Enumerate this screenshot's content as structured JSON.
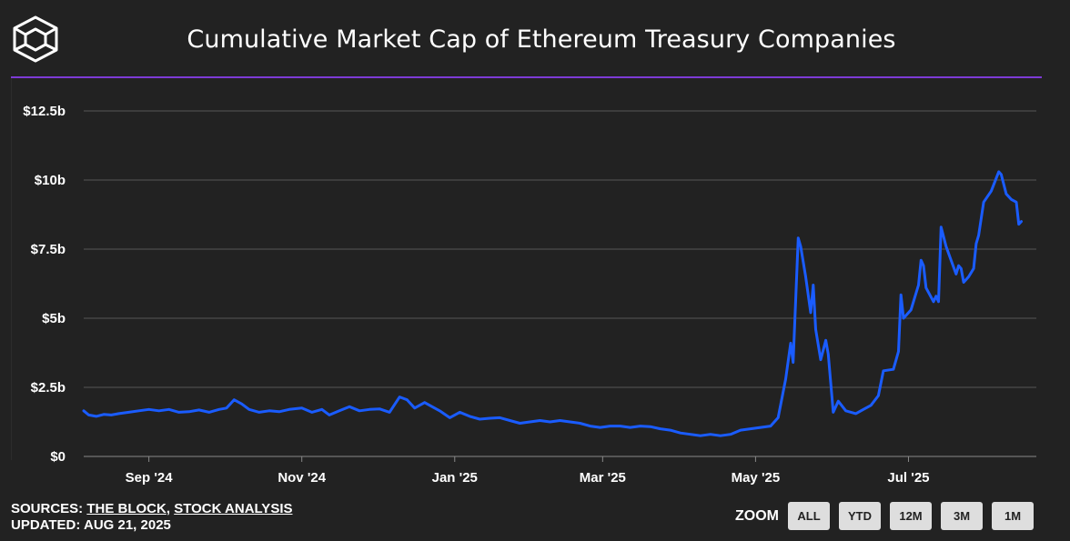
{
  "header": {
    "title": "Cumulative Market Cap of Ethereum Treasury Companies"
  },
  "footer": {
    "sources_prefix": "SOURCES: ",
    "source1": "THE BLOCK",
    "separator": ", ",
    "source2": "STOCK ANALYSIS",
    "updated": "UPDATED: AUG 21, 2025"
  },
  "zoom": {
    "label": "ZOOM",
    "buttons": [
      "ALL",
      "YTD",
      "12M",
      "3M",
      "1M"
    ]
  },
  "colors": {
    "background": "#222222",
    "accent": "#7d3bd6",
    "line": "#1a5cff",
    "grid": "#555555"
  },
  "icons": {
    "logo": "cube-logo-icon"
  },
  "chart_data": {
    "type": "line",
    "title": "Cumulative Market Cap of Ethereum Treasury Companies",
    "xlabel": "",
    "ylabel": "",
    "x_range": [
      "2024-08-06",
      "2025-08-21"
    ],
    "ylim": [
      0,
      12.5
    ],
    "y_unit": "billion USD",
    "y_ticks": [
      0,
      2.5,
      5,
      7.5,
      10,
      12.5
    ],
    "y_tick_labels": [
      "$0",
      "$2.5b",
      "$5b",
      "$7.5b",
      "$10b",
      "$12.5b"
    ],
    "x_ticks": [
      "2024-09-01",
      "2024-11-01",
      "2025-01-01",
      "2025-03-01",
      "2025-05-01",
      "2025-07-01"
    ],
    "x_tick_labels": [
      "Sep '24",
      "Nov '24",
      "Jan '25",
      "Mar '25",
      "May '25",
      "Jul '25"
    ],
    "grid": true,
    "legend": "none",
    "series": [
      {
        "color": "#1a5cff",
        "points": [
          [
            "2024-08-06",
            1.65
          ],
          [
            "2024-08-08",
            1.5
          ],
          [
            "2024-08-11",
            1.45
          ],
          [
            "2024-08-14",
            1.52
          ],
          [
            "2024-08-17",
            1.5
          ],
          [
            "2024-08-20",
            1.55
          ],
          [
            "2024-08-24",
            1.6
          ],
          [
            "2024-08-28",
            1.65
          ],
          [
            "2024-09-01",
            1.7
          ],
          [
            "2024-09-05",
            1.65
          ],
          [
            "2024-09-09",
            1.7
          ],
          [
            "2024-09-13",
            1.6
          ],
          [
            "2024-09-17",
            1.62
          ],
          [
            "2024-09-21",
            1.68
          ],
          [
            "2024-09-25",
            1.6
          ],
          [
            "2024-09-29",
            1.7
          ],
          [
            "2024-10-02",
            1.75
          ],
          [
            "2024-10-05",
            2.05
          ],
          [
            "2024-10-08",
            1.9
          ],
          [
            "2024-10-11",
            1.7
          ],
          [
            "2024-10-15",
            1.6
          ],
          [
            "2024-10-19",
            1.65
          ],
          [
            "2024-10-23",
            1.62
          ],
          [
            "2024-10-27",
            1.7
          ],
          [
            "2024-11-01",
            1.75
          ],
          [
            "2024-11-05",
            1.6
          ],
          [
            "2024-11-09",
            1.7
          ],
          [
            "2024-11-12",
            1.5
          ],
          [
            "2024-11-16",
            1.65
          ],
          [
            "2024-11-20",
            1.8
          ],
          [
            "2024-11-24",
            1.65
          ],
          [
            "2024-11-28",
            1.7
          ],
          [
            "2024-12-02",
            1.72
          ],
          [
            "2024-12-06",
            1.6
          ],
          [
            "2024-12-10",
            2.15
          ],
          [
            "2024-12-13",
            2.05
          ],
          [
            "2024-12-16",
            1.75
          ],
          [
            "2024-12-20",
            1.95
          ],
          [
            "2024-12-23",
            1.8
          ],
          [
            "2024-12-26",
            1.65
          ],
          [
            "2024-12-30",
            1.4
          ],
          [
            "2025-01-03",
            1.6
          ],
          [
            "2025-01-07",
            1.45
          ],
          [
            "2025-01-11",
            1.35
          ],
          [
            "2025-01-15",
            1.38
          ],
          [
            "2025-01-19",
            1.4
          ],
          [
            "2025-01-23",
            1.3
          ],
          [
            "2025-01-27",
            1.2
          ],
          [
            "2025-01-31",
            1.25
          ],
          [
            "2025-02-04",
            1.3
          ],
          [
            "2025-02-08",
            1.25
          ],
          [
            "2025-02-12",
            1.3
          ],
          [
            "2025-02-16",
            1.25
          ],
          [
            "2025-02-20",
            1.2
          ],
          [
            "2025-02-24",
            1.1
          ],
          [
            "2025-02-28",
            1.05
          ],
          [
            "2025-03-04",
            1.1
          ],
          [
            "2025-03-08",
            1.1
          ],
          [
            "2025-03-12",
            1.05
          ],
          [
            "2025-03-16",
            1.1
          ],
          [
            "2025-03-20",
            1.08
          ],
          [
            "2025-03-24",
            1.0
          ],
          [
            "2025-03-28",
            0.95
          ],
          [
            "2025-04-01",
            0.85
          ],
          [
            "2025-04-05",
            0.8
          ],
          [
            "2025-04-09",
            0.75
          ],
          [
            "2025-04-13",
            0.8
          ],
          [
            "2025-04-17",
            0.75
          ],
          [
            "2025-04-21",
            0.8
          ],
          [
            "2025-04-25",
            0.95
          ],
          [
            "2025-04-29",
            1.0
          ],
          [
            "2025-05-03",
            1.05
          ],
          [
            "2025-05-07",
            1.1
          ],
          [
            "2025-05-10",
            1.4
          ],
          [
            "2025-05-13",
            2.8
          ],
          [
            "2025-05-15",
            4.1
          ],
          [
            "2025-05-16",
            3.4
          ],
          [
            "2025-05-18",
            7.9
          ],
          [
            "2025-05-19",
            7.6
          ],
          [
            "2025-05-21",
            6.5
          ],
          [
            "2025-05-23",
            5.2
          ],
          [
            "2025-05-24",
            6.2
          ],
          [
            "2025-05-25",
            4.6
          ],
          [
            "2025-05-27",
            3.5
          ],
          [
            "2025-05-29",
            4.2
          ],
          [
            "2025-05-30",
            3.7
          ],
          [
            "2025-06-01",
            1.6
          ],
          [
            "2025-06-03",
            2.0
          ],
          [
            "2025-06-06",
            1.65
          ],
          [
            "2025-06-10",
            1.55
          ],
          [
            "2025-06-13",
            1.7
          ],
          [
            "2025-06-16",
            1.85
          ],
          [
            "2025-06-19",
            2.2
          ],
          [
            "2025-06-21",
            3.1
          ],
          [
            "2025-06-25",
            3.15
          ],
          [
            "2025-06-27",
            3.8
          ],
          [
            "2025-06-28",
            5.85
          ],
          [
            "2025-06-29",
            5.0
          ],
          [
            "2025-07-02",
            5.3
          ],
          [
            "2025-07-05",
            6.2
          ],
          [
            "2025-07-06",
            7.1
          ],
          [
            "2025-07-07",
            6.9
          ],
          [
            "2025-07-08",
            6.1
          ],
          [
            "2025-07-11",
            5.6
          ],
          [
            "2025-07-12",
            5.8
          ],
          [
            "2025-07-13",
            5.6
          ],
          [
            "2025-07-14",
            8.3
          ],
          [
            "2025-07-16",
            7.6
          ],
          [
            "2025-07-18",
            7.1
          ],
          [
            "2025-07-20",
            6.6
          ],
          [
            "2025-07-21",
            6.9
          ],
          [
            "2025-07-22",
            6.8
          ],
          [
            "2025-07-23",
            6.3
          ],
          [
            "2025-07-25",
            6.5
          ],
          [
            "2025-07-27",
            6.8
          ],
          [
            "2025-07-28",
            7.7
          ],
          [
            "2025-07-29",
            8.0
          ],
          [
            "2025-07-31",
            9.2
          ],
          [
            "2025-08-03",
            9.6
          ],
          [
            "2025-08-06",
            10.3
          ],
          [
            "2025-08-07",
            10.2
          ],
          [
            "2025-08-09",
            9.5
          ],
          [
            "2025-08-11",
            9.3
          ],
          [
            "2025-08-13",
            9.2
          ],
          [
            "2025-08-14",
            8.4
          ],
          [
            "2025-08-15",
            8.5
          ]
        ]
      }
    ]
  }
}
